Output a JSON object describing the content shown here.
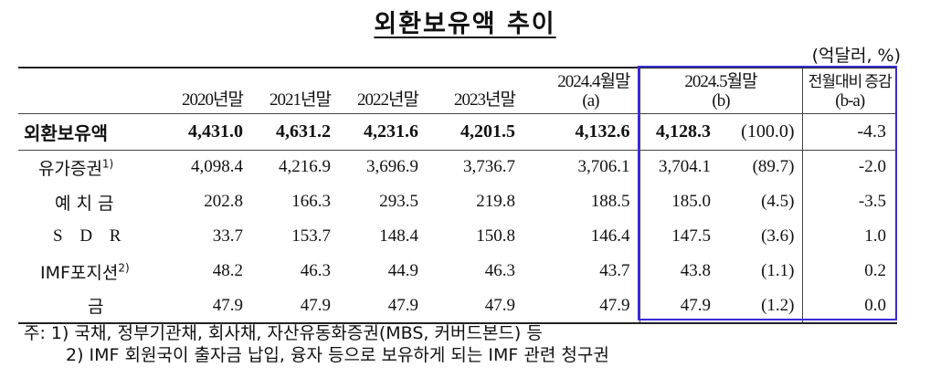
{
  "title": "외환보유액 추이",
  "unit": "(억달러, %)",
  "headers": {
    "c2020": "2020년말",
    "c2021": "2021년말",
    "c2022": "2022년말",
    "c2023": "2023년말",
    "c2024_4_line1": "2024.4월말",
    "c2024_4_line2": "(a)",
    "c2024_5_line1": "2024.5월말",
    "c2024_5_line2": "(b)",
    "chg_line1": "전월대비 증감",
    "chg_line2": "(b-a)"
  },
  "rows": [
    {
      "label": "외환보유액",
      "sup": "",
      "v2020": "4,431.0",
      "v2021": "4,631.2",
      "v2022": "4,231.6",
      "v2023": "4,201.5",
      "v2024_4": "4,132.6",
      "v2024_5": "4,128.3",
      "pct": "(100.0)",
      "chg": "-4.3"
    },
    {
      "label": "유가증권",
      "sup": "1)",
      "v2020": "4,098.4",
      "v2021": "4,216.9",
      "v2022": "3,696.9",
      "v2023": "3,736.7",
      "v2024_4": "3,706.1",
      "v2024_5": "3,704.1",
      "pct": "(89.7)",
      "chg": "-2.0"
    },
    {
      "label": "예 치 금",
      "sup": "",
      "v2020": "202.8",
      "v2021": "166.3",
      "v2022": "293.5",
      "v2023": "219.8",
      "v2024_4": "188.5",
      "v2024_5": "185.0",
      "pct": "(4.5)",
      "chg": "-3.5"
    },
    {
      "label": "S D R",
      "sup": "",
      "v2020": "33.7",
      "v2021": "153.7",
      "v2022": "148.4",
      "v2023": "150.8",
      "v2024_4": "146.4",
      "v2024_5": "147.5",
      "pct": "(3.6)",
      "chg": "1.0"
    },
    {
      "label": "IMF포지션",
      "sup": "2)",
      "v2020": "48.2",
      "v2021": "46.3",
      "v2022": "44.9",
      "v2023": "46.3",
      "v2024_4": "43.7",
      "v2024_5": "43.8",
      "pct": "(1.1)",
      "chg": "0.2"
    },
    {
      "label": "금",
      "sup": "",
      "v2020": "47.9",
      "v2021": "47.9",
      "v2022": "47.9",
      "v2023": "47.9",
      "v2024_4": "47.9",
      "v2024_5": "47.9",
      "pct": "(1.2)",
      "chg": "0.0"
    }
  ],
  "notes": {
    "n1": "주: 1) 국채, 정부기관채, 회사채, 자산유동화증권(MBS, 커버드본드) 등",
    "n2": "2) IMF 회원국이 출자금 납입, 융자 등으로 보유하게 되는 IMF 관련 청구권"
  },
  "colors": {
    "highlight_box": "#3b2bd6",
    "text": "#111111"
  }
}
